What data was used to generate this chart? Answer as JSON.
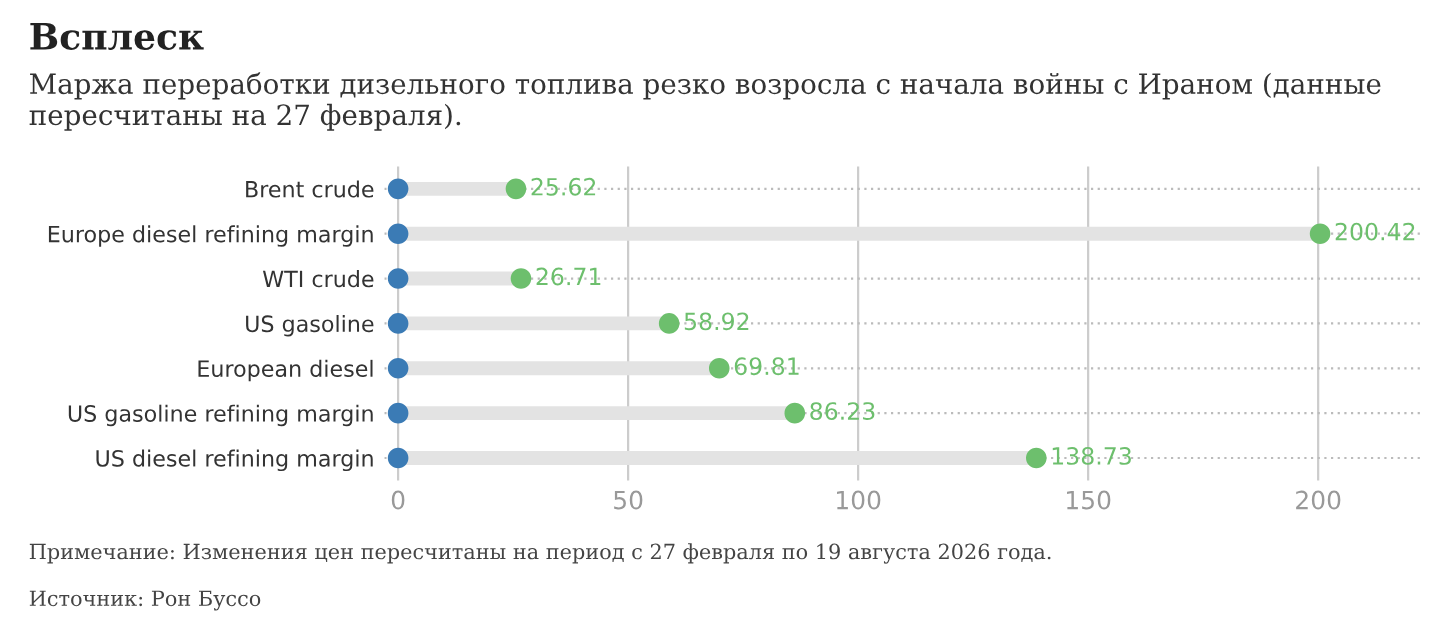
{
  "chart_data": {
    "type": "lollipop",
    "orientation": "horizontal",
    "title": "Всплеск",
    "subtitle": "Маржа переработки дизельного топлива резко возросла с начала войны с Ираном (данные пересчитаны на 27 февраля).",
    "categories": [
      "Brent crude",
      "Europe diesel refining margin",
      "WTI crude",
      "US gasoline",
      "European diesel",
      "US gasoline refining margin",
      "US diesel refining margin"
    ],
    "series": [
      {
        "type": "scatter",
        "color": "#3b7bb5",
        "values": [
          0,
          0,
          0,
          0,
          0,
          0,
          0
        ]
      },
      {
        "color": "#6dbf6d",
        "values": [
          25.62,
          200.42,
          26.71,
          58.92,
          69.81,
          86.23,
          138.73
        ],
        "value_labels": [
          "25.62",
          "200.42",
          "26.71",
          "58.92",
          "69.81",
          "86.23",
          "138.73"
        ]
      }
    ],
    "xlim": [
      -3,
      223
    ],
    "xticks": [
      0,
      50,
      100,
      150,
      200
    ],
    "grid": true,
    "marker": "circle",
    "annotations": [
      "Примечание: Изменения цен пересчитаны на период с 27 февраля по 19 августа 2026 года.",
      "Источник: Рон Буссо"
    ]
  }
}
